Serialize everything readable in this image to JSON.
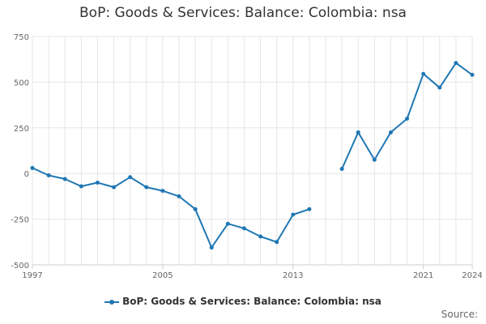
{
  "header": {
    "title": "BoP: Goods & Services: Balance: Colombia: nsa"
  },
  "footer": {
    "source_label": "Source:"
  },
  "colors": {
    "series": "#1f77b4",
    "grid": "#e6e6e6",
    "axis": "#cccccc"
  },
  "chart_data": {
    "type": "line",
    "title": "BoP: Goods & Services: Balance: Colombia: nsa",
    "xlabel": "",
    "ylabel": "",
    "xlim": [
      1997,
      2024
    ],
    "ylim": [
      -500,
      750
    ],
    "x_ticks": [
      1997,
      2005,
      2013,
      2021,
      2024
    ],
    "y_ticks": [
      -500,
      -250,
      0,
      250,
      500,
      750
    ],
    "grid": true,
    "legend_position": "bottom",
    "series": [
      {
        "name": "BoP: Goods & Services: Balance: Colombia: nsa",
        "x": [
          1997,
          1998,
          1999,
          2000,
          2001,
          2002,
          2003,
          2004,
          2005,
          2006,
          2007,
          2008,
          2009,
          2010,
          2011,
          2012,
          2013,
          2014,
          2015,
          2016,
          2017,
          2018,
          2019,
          2020,
          2021,
          2022,
          2023,
          2024
        ],
        "y": [
          30,
          -10,
          -30,
          -70,
          -50,
          -75,
          -20,
          -75,
          -95,
          -125,
          -195,
          -405,
          -275,
          -300,
          -345,
          -375,
          -225,
          -195,
          null,
          25,
          225,
          75,
          225,
          300,
          545,
          470,
          605,
          540
        ]
      }
    ]
  }
}
